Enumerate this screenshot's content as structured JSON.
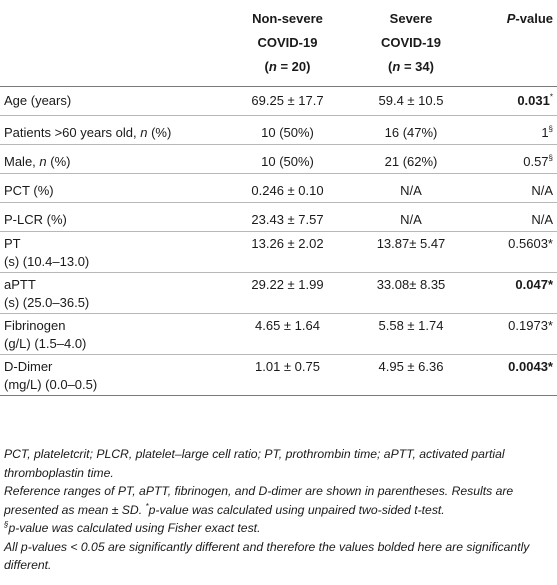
{
  "header": {
    "col1_line1": "Non-severe",
    "col1_line2": "COVID-19",
    "col1_line3_pre": "(",
    "col1_line3_n": "n",
    "col1_line3_post": " = 20)",
    "col2_line1": "Severe",
    "col2_line2": "COVID-19",
    "col2_line3_pre": "(",
    "col2_line3_n": "n",
    "col2_line3_post": " = 34)",
    "pvalue_p": "P",
    "pvalue_rest": "-value"
  },
  "rows": [
    {
      "label": "Age (years)",
      "label2": "",
      "nonsevere": "69.25 ± 17.7",
      "severe": "59.4 ± 10.5",
      "pvalue": "0.031",
      "mark": "*",
      "bold": true
    },
    {
      "label": "Patients >60 years old, ",
      "label_n": "n",
      "label_suffix": " (%)",
      "nonsevere": "10 (50%)",
      "severe": "16 (47%)",
      "pvalue": "1",
      "mark": "§"
    },
    {
      "label": "Male, ",
      "label_n": "n",
      "label_suffix": " (%)",
      "nonsevere": "10 (50%)",
      "severe": "21 (62%)",
      "pvalue": "0.57",
      "mark": "§"
    },
    {
      "label": "PCT (%)",
      "nonsevere": "0.246 ± 0.10",
      "severe": "N/A",
      "pvalue": "N/A"
    },
    {
      "label": "P-LCR (%)",
      "nonsevere": "23.43 ± 7.57",
      "severe": "N/A",
      "pvalue": "N/A"
    },
    {
      "label": "PT",
      "label2": "(s) (10.4–13.0)",
      "nonsevere": "13.26 ± 2.02",
      "severe": "13.87± 5.47",
      "pvalue": "0.5603*"
    },
    {
      "label": "aPTT",
      "label2": "(s) (25.0–36.5)",
      "nonsevere": "29.22 ± 1.99",
      "severe": "33.08± 8.35",
      "pvalue": "0.047*",
      "bold": true
    },
    {
      "label": "Fibrinogen",
      "label2": "(g/L) (1.5–4.0)",
      "nonsevere": "4.65 ± 1.64",
      "severe": "5.58 ± 1.74",
      "pvalue": "0.1973*"
    },
    {
      "label": "D-Dimer",
      "label2": "(mg/L) (0.0–0.5)",
      "nonsevere": "1.01 ± 0.75",
      "severe": "4.95 ± 6.36",
      "pvalue": "0.0043*",
      "bold": true
    }
  ],
  "notes": {
    "abbrev": "PCT, plateletcrit; PLCR, platelet–large cell ratio; PT, prothrombin time; aPTT, activated partial thromboplastin time.",
    "reference_a": "Reference ranges of PT, aPTT, fibrinogen, and D-dimer are shown in parentheses. Results are presented as mean ± SD. ",
    "reference_mark": "*",
    "reference_b": "p-value was calculated using unpaired two-sided t-test.",
    "fisher_mark": "§",
    "fisher": "p-value was calculated using Fisher exact test.",
    "significance": "All p-values < 0.05 are significantly different and therefore the values bolded here are significantly different."
  }
}
